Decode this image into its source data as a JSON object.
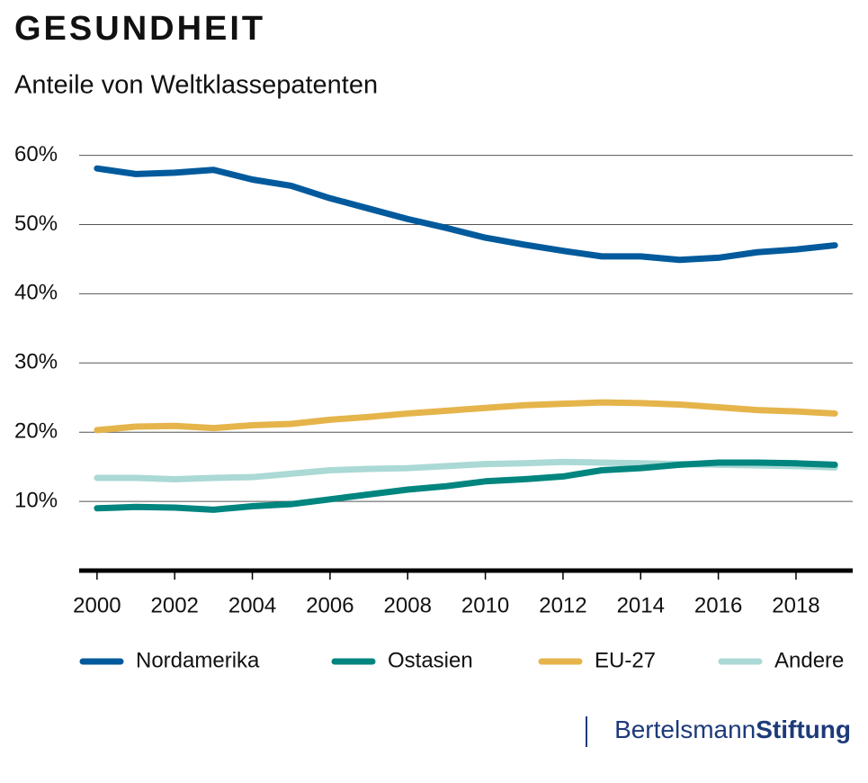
{
  "chart_data": {
    "type": "line",
    "title": "GESUNDHEIT",
    "subtitle": "Anteile von Weltklassepatenten",
    "x": [
      2000,
      2001,
      2002,
      2003,
      2004,
      2005,
      2006,
      2007,
      2008,
      2009,
      2010,
      2011,
      2012,
      2013,
      2014,
      2015,
      2016,
      2017,
      2018,
      2019
    ],
    "xlim": [
      1999.54,
      2019.46
    ],
    "xticks": [
      2000,
      2002,
      2004,
      2006,
      2008,
      2010,
      2012,
      2014,
      2016,
      2018
    ],
    "ylim": [
      0,
      60
    ],
    "yticks": [
      {
        "value": 10,
        "label": "10%"
      },
      {
        "value": 20,
        "label": "20%"
      },
      {
        "value": 30,
        "label": "30%"
      },
      {
        "value": 40,
        "label": "40%"
      },
      {
        "value": 50,
        "label": "50%"
      },
      {
        "value": 60,
        "label": "60%"
      }
    ],
    "grid": true,
    "series": [
      {
        "name": "Nordamerika",
        "color": "#005a9c",
        "values": [
          58.1,
          57.3,
          57.5,
          57.9,
          56.5,
          55.6,
          53.8,
          52.3,
          50.8,
          49.5,
          48.1,
          47.1,
          46.2,
          45.4,
          45.4,
          44.9,
          45.2,
          46.0,
          46.4,
          47.0
        ]
      },
      {
        "name": "Ostasien",
        "color": "#00857f",
        "values": [
          9.0,
          9.2,
          9.1,
          8.8,
          9.3,
          9.6,
          10.3,
          11.0,
          11.7,
          12.2,
          12.9,
          13.2,
          13.6,
          14.5,
          14.8,
          15.3,
          15.6,
          15.6,
          15.5,
          15.3
        ]
      },
      {
        "name": "EU-27",
        "color": "#e5b44a",
        "values": [
          20.3,
          20.8,
          20.9,
          20.6,
          21.0,
          21.2,
          21.8,
          22.2,
          22.7,
          23.1,
          23.5,
          23.9,
          24.1,
          24.3,
          24.2,
          24.0,
          23.6,
          23.2,
          23.0,
          22.7
        ]
      },
      {
        "name": "Andere",
        "color": "#abd9d5",
        "values": [
          13.4,
          13.4,
          13.2,
          13.4,
          13.5,
          14.0,
          14.5,
          14.7,
          14.8,
          15.1,
          15.4,
          15.5,
          15.7,
          15.6,
          15.5,
          15.4,
          15.3,
          15.2,
          15.1,
          14.9
        ]
      }
    ],
    "brand": {
      "part1": "Bertelsmann",
      "part2": "Stiftung"
    }
  }
}
